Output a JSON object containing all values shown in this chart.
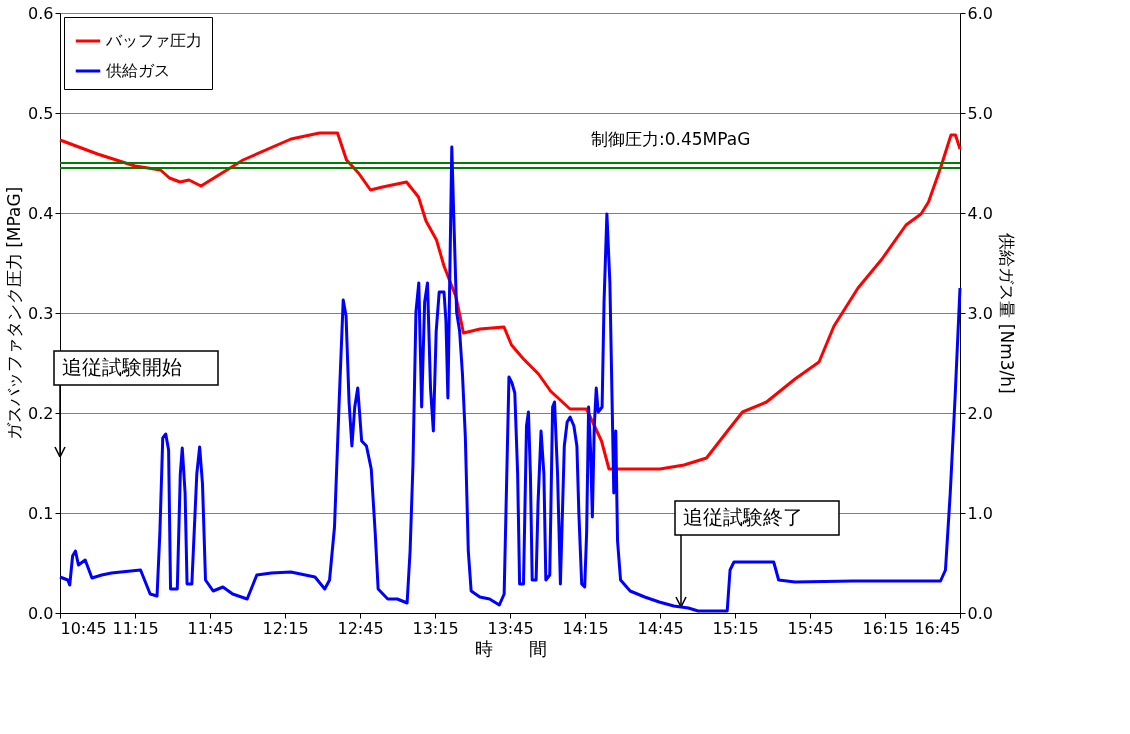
{
  "chart_data": {
    "type": "line",
    "xlabel": "時　　間",
    "ylabel": "ガスバッファタンク圧力 [MPaG]",
    "y2label": "供給ガス量 [Nm3/h]",
    "xlim": [
      10.75,
      16.75
    ],
    "xticks": [
      {
        "value": 10.75,
        "label": "10:45"
      },
      {
        "value": 11.25,
        "label": "11:15"
      },
      {
        "value": 11.75,
        "label": "11:45"
      },
      {
        "value": 12.25,
        "label": "12:15"
      },
      {
        "value": 12.75,
        "label": "12:45"
      },
      {
        "value": 13.25,
        "label": "13:15"
      },
      {
        "value": 13.75,
        "label": "13:45"
      },
      {
        "value": 14.25,
        "label": "14:15"
      },
      {
        "value": 14.75,
        "label": "14:45"
      },
      {
        "value": 15.25,
        "label": "15:15"
      },
      {
        "value": 15.75,
        "label": "15:45"
      },
      {
        "value": 16.25,
        "label": "16:15"
      },
      {
        "value": 16.75,
        "label": "16:45"
      }
    ],
    "ylim": [
      0,
      0.6
    ],
    "yticks": [
      {
        "value": 0,
        "label": "0.0"
      },
      {
        "value": 0.1,
        "label": "0.1"
      },
      {
        "value": 0.2,
        "label": "0.2"
      },
      {
        "value": 0.3,
        "label": "0.3"
      },
      {
        "value": 0.4,
        "label": "0.4"
      },
      {
        "value": 0.5,
        "label": "0.5"
      },
      {
        "value": 0.6,
        "label": "0.6"
      }
    ],
    "y2lim": [
      0,
      6
    ],
    "y2ticks": [
      {
        "value": 0,
        "label": "0.0"
      },
      {
        "value": 1,
        "label": "1.0"
      },
      {
        "value": 2,
        "label": "2.0"
      },
      {
        "value": 3,
        "label": "3.0"
      },
      {
        "value": 4,
        "label": "4.0"
      },
      {
        "value": 5,
        "label": "5.0"
      },
      {
        "value": 6,
        "label": "6.0"
      }
    ],
    "grid": "y",
    "legend": "top left",
    "marker": "none",
    "line_style": "solid",
    "series": [
      {
        "name": "バッファ圧力",
        "color": "#ff0000",
        "x": [
          10.75,
          11.0,
          11.25,
          11.42,
          11.48,
          11.55,
          11.61,
          11.69,
          11.97,
          12.29,
          12.48,
          12.6,
          12.66,
          12.74,
          12.82,
          12.9,
          13.06,
          13.14,
          13.19,
          13.26,
          13.31,
          13.39,
          13.44,
          13.55,
          13.71,
          13.76,
          13.84,
          13.94,
          14.02,
          14.15,
          14.26,
          14.36,
          14.41,
          14.75,
          14.91,
          15.06,
          15.2,
          15.3,
          15.46,
          15.65,
          15.81,
          15.91,
          16.07,
          16.23,
          16.39,
          16.49,
          16.54,
          16.62,
          16.69,
          16.72,
          16.75
        ],
        "values": [
          0.473,
          0.459,
          0.447,
          0.443,
          0.435,
          0.431,
          0.433,
          0.427,
          0.453,
          0.474,
          0.48,
          0.48,
          0.453,
          0.44,
          0.423,
          0.426,
          0.431,
          0.416,
          0.392,
          0.373,
          0.347,
          0.316,
          0.28,
          0.284,
          0.286,
          0.268,
          0.254,
          0.239,
          0.222,
          0.204,
          0.204,
          0.172,
          0.144,
          0.144,
          0.148,
          0.155,
          0.182,
          0.201,
          0.211,
          0.234,
          0.251,
          0.287,
          0.325,
          0.354,
          0.388,
          0.399,
          0.411,
          0.445,
          0.478,
          0.478,
          0.464
        ]
      },
      {
        "name": "供給ガス",
        "color": "#0000ff",
        "axis": "y2",
        "x": [
          10.75,
          10.802,
          10.815,
          10.834,
          10.853,
          10.873,
          10.918,
          10.963,
          11.028,
          11.093,
          11.157,
          11.287,
          11.351,
          11.397,
          11.416,
          11.435,
          11.455,
          11.474,
          11.487,
          11.532,
          11.552,
          11.565,
          11.584,
          11.597,
          11.629,
          11.662,
          11.681,
          11.7,
          11.72,
          11.771,
          11.836,
          11.901,
          11.998,
          12.062,
          12.159,
          12.289,
          12.45,
          12.515,
          12.547,
          12.58,
          12.612,
          12.638,
          12.657,
          12.677,
          12.696,
          12.715,
          12.735,
          12.761,
          12.793,
          12.825,
          12.851,
          12.871,
          12.935,
          12.999,
          13.064,
          13.084,
          13.103,
          13.123,
          13.142,
          13.161,
          13.181,
          13.2,
          13.22,
          13.239,
          13.258,
          13.278,
          13.31,
          13.323,
          13.336,
          13.349,
          13.362,
          13.375,
          13.394,
          13.414,
          13.433,
          13.452,
          13.472,
          13.491,
          13.549,
          13.614,
          13.679,
          13.711,
          13.73,
          13.743,
          13.763,
          13.782,
          13.801,
          13.814,
          13.84,
          13.86,
          13.873,
          13.886,
          13.898,
          13.924,
          13.937,
          13.957,
          13.976,
          13.989,
          14.015,
          14.034,
          14.047,
          14.067,
          14.086,
          14.112,
          14.131,
          14.151,
          14.176,
          14.196,
          14.209,
          14.228,
          14.248,
          14.261,
          14.274,
          14.287,
          14.299,
          14.312,
          14.325,
          14.338,
          14.364,
          14.377,
          14.396,
          14.416,
          14.429,
          14.442,
          14.455,
          14.467,
          14.487,
          14.551,
          14.648,
          14.745,
          14.842,
          14.939,
          15.004,
          15.133,
          15.198,
          15.217,
          15.243,
          15.508,
          15.541,
          15.65,
          16.038,
          16.491,
          16.62,
          16.653,
          16.685,
          16.717,
          16.75
        ],
        "values": [
          0.36,
          0.33,
          0.28,
          0.57,
          0.62,
          0.48,
          0.53,
          0.35,
          0.38,
          0.4,
          0.41,
          0.43,
          0.19,
          0.17,
          0.81,
          1.75,
          1.79,
          1.63,
          0.24,
          0.24,
          1.39,
          1.65,
          1.2,
          0.29,
          0.29,
          1.39,
          1.66,
          1.29,
          0.33,
          0.22,
          0.26,
          0.19,
          0.14,
          0.38,
          0.4,
          0.41,
          0.36,
          0.24,
          0.33,
          0.86,
          2.15,
          3.13,
          2.97,
          2.11,
          1.67,
          2.06,
          2.25,
          1.72,
          1.67,
          1.44,
          0.81,
          0.24,
          0.14,
          0.14,
          0.1,
          0.62,
          1.48,
          3.01,
          3.3,
          2.06,
          3.11,
          3.3,
          2.25,
          1.82,
          2.82,
          3.21,
          3.21,
          2.92,
          2.15,
          3.4,
          4.66,
          3.97,
          3.01,
          2.82,
          2.39,
          1.77,
          0.62,
          0.22,
          0.16,
          0.14,
          0.08,
          0.19,
          1.48,
          2.36,
          2.3,
          2.2,
          1.39,
          0.29,
          0.29,
          1.87,
          2.01,
          1.39,
          0.33,
          0.33,
          1.1,
          1.82,
          1.39,
          0.33,
          0.38,
          2.06,
          2.11,
          1.39,
          0.29,
          1.67,
          1.91,
          1.96,
          1.87,
          1.67,
          1.0,
          0.29,
          0.26,
          0.81,
          2.06,
          1.63,
          0.96,
          1.87,
          2.25,
          2.01,
          2.06,
          3.11,
          3.99,
          3.3,
          2.25,
          1.2,
          1.82,
          0.72,
          0.33,
          0.22,
          0.16,
          0.11,
          0.07,
          0.05,
          0.02,
          0.02,
          0.02,
          0.43,
          0.51,
          0.51,
          0.33,
          0.31,
          0.32,
          0.32,
          0.32,
          0.43,
          1.2,
          2.15,
          3.25
        ]
      }
    ],
    "ref_lines": [
      {
        "axis": "y",
        "value": 0.45,
        "label": "制御圧力:0.45MPaG",
        "color": "#008000"
      },
      {
        "axis": "y",
        "value": 0.445,
        "color": "#008000"
      }
    ],
    "annotations": [
      "追従試験開始",
      {
        "text": "追従試験終了",
        "x": 14.89,
        "y": 0.006
      }
    ]
  }
}
